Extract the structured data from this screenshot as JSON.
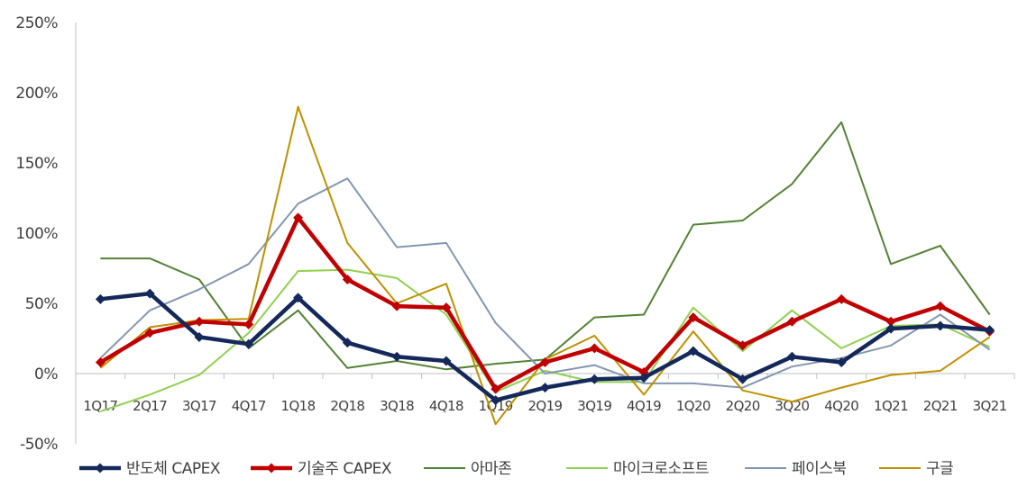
{
  "chart_data": {
    "type": "line",
    "title": "",
    "xlabel": "",
    "ylabel": "",
    "y_tick_labels": [
      "-50%",
      "0%",
      "50%",
      "100%",
      "150%",
      "200%",
      "250%"
    ],
    "y_tick_values": [
      -50,
      0,
      50,
      100,
      150,
      200,
      250
    ],
    "ylim": [
      -50,
      250
    ],
    "grid": false,
    "legend_position": "bottom",
    "categories": [
      "1Q17",
      "2Q17",
      "3Q17",
      "4Q17",
      "1Q18",
      "2Q18",
      "3Q18",
      "4Q18",
      "1Q19",
      "2Q19",
      "3Q19",
      "4Q19",
      "1Q20",
      "2Q20",
      "3Q20",
      "4Q20",
      "1Q21",
      "2Q21",
      "3Q21"
    ],
    "series": [
      {
        "name": "반도체 CAPEX",
        "color": "#14285a",
        "markers": true,
        "values": [
          53,
          57,
          26,
          21,
          54,
          22,
          12,
          9,
          -19,
          -10,
          -4,
          -3,
          16,
          -4,
          12,
          8,
          32,
          34,
          31
        ]
      },
      {
        "name": "기술주 CAPEX",
        "color": "#c00000",
        "markers": true,
        "values": [
          8,
          29,
          37,
          35,
          111,
          67,
          48,
          47,
          -11,
          8,
          18,
          1,
          40,
          20,
          37,
          53,
          37,
          48,
          30
        ]
      },
      {
        "name": "아마존",
        "color": "#548235",
        "markers": false,
        "values": [
          82,
          82,
          67,
          18,
          45,
          4,
          9,
          3,
          7,
          10,
          40,
          42,
          106,
          109,
          135,
          179,
          78,
          91,
          42
        ]
      },
      {
        "name": "마이크로소프트",
        "color": "#92d050",
        "markers": false,
        "values": [
          -27,
          -15,
          -1,
          29,
          73,
          74,
          68,
          42,
          -13,
          2,
          -6,
          -6,
          47,
          16,
          45,
          18,
          34,
          35,
          19
        ]
      },
      {
        "name": "페이스북",
        "color": "#8497b0",
        "markers": false,
        "values": [
          11,
          45,
          60,
          78,
          121,
          139,
          90,
          93,
          36,
          0,
          6,
          -7,
          -7,
          -10,
          5,
          11,
          20,
          42,
          17
        ]
      },
      {
        "name": "구글",
        "color": "#bf9000",
        "markers": false,
        "values": [
          4,
          33,
          38,
          39,
          190,
          93,
          50,
          64,
          -36,
          10,
          27,
          -15,
          30,
          -12,
          -20,
          -10,
          -1,
          2,
          26
        ]
      }
    ]
  }
}
